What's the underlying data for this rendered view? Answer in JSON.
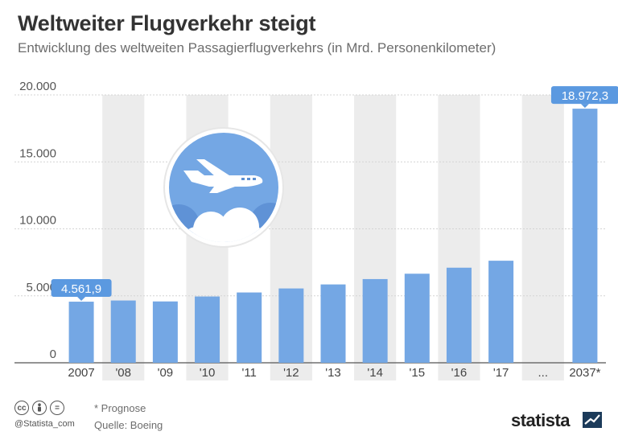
{
  "header": {
    "title": "Weltweiter Flugverkehr steigt",
    "subtitle": "Entwicklung des weltweiten Passagierflugverkehrs (in Mrd. Personenkilometer)"
  },
  "footer": {
    "handle": "@Statista_com",
    "footnote": "* Prognose",
    "source": "Quelle: Boeing",
    "brand": "statista"
  },
  "colors": {
    "bar": "#74a7e4",
    "band": "#ececec",
    "label_bg": "#5b99e0",
    "plane_circle": "#74a7e4"
  },
  "icons": [
    "cc-icon",
    "person-icon",
    "equals-icon",
    "airplane-icon",
    "cloud-icon",
    "statista-logo-icon"
  ],
  "chart_data": {
    "type": "bar",
    "categories": [
      "2007",
      "'08",
      "'09",
      "'10",
      "'11",
      "'12",
      "'13",
      "'14",
      "'15",
      "'16",
      "'17",
      "...",
      "2037*"
    ],
    "values": [
      4561.9,
      4650,
      4580,
      4950,
      5250,
      5550,
      5850,
      6250,
      6650,
      7100,
      7620,
      null,
      18972.3
    ],
    "labels": [
      {
        "index": 0,
        "text": "4.561,9"
      },
      {
        "index": 12,
        "text": "18.972,3"
      }
    ],
    "yticks": [
      {
        "value": 0,
        "label": "0"
      },
      {
        "value": 5000,
        "label": "5.000"
      },
      {
        "value": 10000,
        "label": "10.000"
      },
      {
        "value": 15000,
        "label": "15.000"
      },
      {
        "value": 20000,
        "label": "20.000"
      }
    ],
    "ylim": [
      0,
      20000
    ],
    "grid": true,
    "shaded_columns": [
      1,
      3,
      5,
      7,
      9,
      11
    ]
  }
}
